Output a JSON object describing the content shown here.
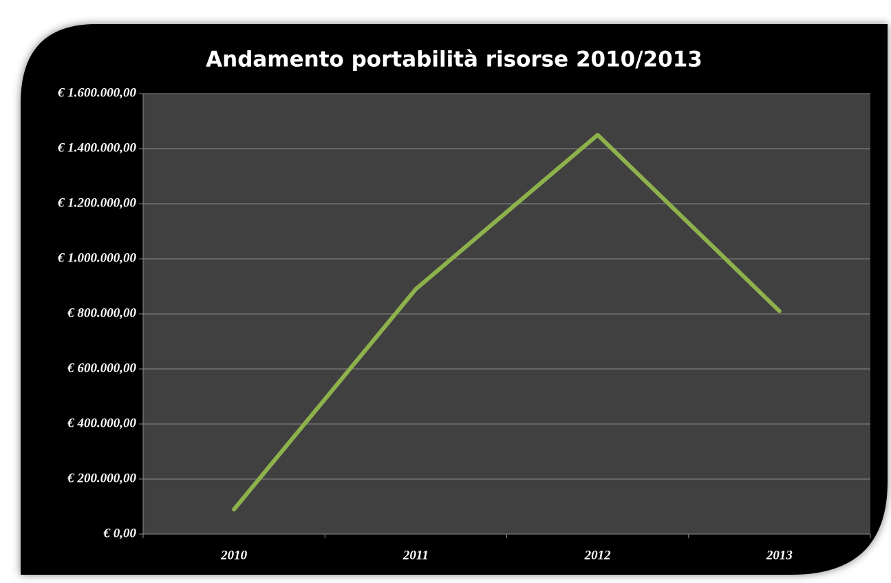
{
  "chart_data": {
    "type": "line",
    "title": "Andamento portabilità risorse 2010/2013",
    "categories": [
      "2010",
      "2011",
      "2012",
      "2013"
    ],
    "values": [
      90000,
      890000,
      1450000,
      810000
    ],
    "color": "#8db24c",
    "ylim": [
      0,
      1600000
    ],
    "yticks": [
      {
        "value": 0,
        "label": "€ 0,00"
      },
      {
        "value": 200000,
        "label": "€ 200.000,00"
      },
      {
        "value": 400000,
        "label": "€ 400.000,00"
      },
      {
        "value": 600000,
        "label": "€ 600.000,00"
      },
      {
        "value": 800000,
        "label": "€ 800.000,00"
      },
      {
        "value": 1000000,
        "label": "€ 1.000.000,00"
      },
      {
        "value": 1200000,
        "label": "€ 1.200.000,00"
      },
      {
        "value": 1400000,
        "label": "€ 1.400.000,00"
      },
      {
        "value": 1600000,
        "label": "€ 1.600.000,00"
      }
    ],
    "grid": true
  }
}
